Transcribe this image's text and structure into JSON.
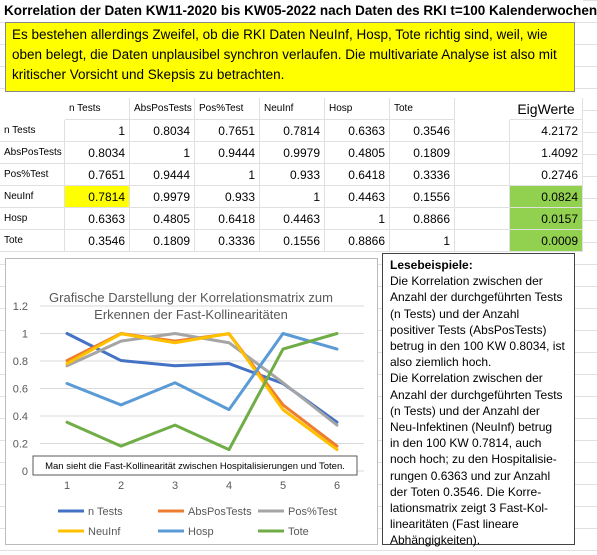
{
  "title": "Korrelation der Daten KW11-2020 bis KW05-2022 nach Daten des RKI t=100 Kalenderwochen",
  "notice": "Es bestehen allerdings Zweifel, ob die RKI Daten NeuInf, Hosp, Tote richtig sind, weil, wie oben belegt, die Daten unplausibel synchron verlaufen. Die multivariate Analyse ist also mit kritischer Vorsicht und Skepsis zu betrachten.",
  "table": {
    "columns": [
      "n Tests",
      "AbsPosTests",
      "Pos%Test",
      "NeuInf",
      "Hosp",
      "Tote"
    ],
    "eigen_header": "EigWerte",
    "rows": [
      {
        "label": "n Tests",
        "values": [
          1,
          0.8034,
          0.7651,
          0.7814,
          0.6363,
          0.3546
        ],
        "eigen": 4.2172
      },
      {
        "label": "AbsPosTests",
        "values": [
          0.8034,
          1,
          0.9444,
          0.9979,
          0.4805,
          0.1809
        ],
        "eigen": 1.4092
      },
      {
        "label": "Pos%Test",
        "values": [
          0.7651,
          0.9444,
          1,
          0.933,
          0.6418,
          0.3336
        ],
        "eigen": 0.2746
      },
      {
        "label": "NeuInf",
        "values": [
          0.7814,
          0.9979,
          0.933,
          1,
          0.4463,
          0.1556
        ],
        "eigen": 0.0824
      },
      {
        "label": "Hosp",
        "values": [
          0.6363,
          0.4805,
          0.6418,
          0.4463,
          1,
          0.8866
        ],
        "eigen": 0.0157
      },
      {
        "label": "Tote",
        "values": [
          0.3546,
          0.1809,
          0.3336,
          0.1556,
          0.8866,
          1
        ],
        "eigen": 0.0009
      }
    ]
  },
  "chart_data": {
    "type": "line",
    "title": "Grafische Darstellung der Korrelationsmatrix zum Erkennen der Fast-Kollinearitäten",
    "annotation": "Man sieht die Fast-Kollinearität zwischen Hospitalisierungen und Toten.",
    "categories": [
      1,
      2,
      3,
      4,
      5,
      6
    ],
    "ylim": [
      0,
      1.2
    ],
    "yticks": [
      0,
      0.2,
      0.4,
      0.6,
      0.8,
      1,
      1.2
    ],
    "grid": true,
    "series": [
      {
        "name": "n Tests",
        "color": "#4472c4",
        "values": [
          1,
          0.8034,
          0.7651,
          0.7814,
          0.6363,
          0.3546
        ]
      },
      {
        "name": "AbsPosTests",
        "color": "#ed7d31",
        "values": [
          0.8034,
          1,
          0.9444,
          0.9979,
          0.4805,
          0.1809
        ]
      },
      {
        "name": "Pos%Test",
        "color": "#a5a5a5",
        "values": [
          0.7651,
          0.9444,
          1,
          0.933,
          0.6418,
          0.3336
        ]
      },
      {
        "name": "NeuInf",
        "color": "#ffc000",
        "values": [
          0.7814,
          0.9979,
          0.933,
          1,
          0.4463,
          0.1556
        ]
      },
      {
        "name": "Hosp",
        "color": "#5b9bd5",
        "values": [
          0.6363,
          0.4805,
          0.6418,
          0.4463,
          1,
          0.8866
        ]
      },
      {
        "name": "Tote",
        "color": "#70ad47",
        "values": [
          0.3546,
          0.1809,
          0.3336,
          0.1556,
          0.8866,
          1
        ]
      }
    ]
  },
  "reading_example": {
    "heading": "Lesebeispiele:",
    "lines": [
      "Die Korrelation zwischen der",
      "Anzahl der durchgeführten Tests",
      "(n Tests) und der Anzahl",
      "positiver Tests (AbsPosTests)",
      "betrug in den 100 KW 0.8034, ist",
      "also ziemlich hoch.",
      "Die Korrelation zwischen der",
      "Anzahl der durchgeführten Tests",
      "(n Tests)  und der Anzahl der",
      "Neu-Infektinen (NeuInf) betrug",
      "in den 100 KW 0.7814, auch",
      "noch hoch; zu den Hospitalisie-",
      "rungen 0.6363 und zur Anzahl",
      "der Toten 0.3546. Die Korre-",
      "lationsmatrix zeigt 3 Fast-Kol-",
      "linearitäten (Fast lineare",
      "Abhängigkeiten)."
    ]
  }
}
